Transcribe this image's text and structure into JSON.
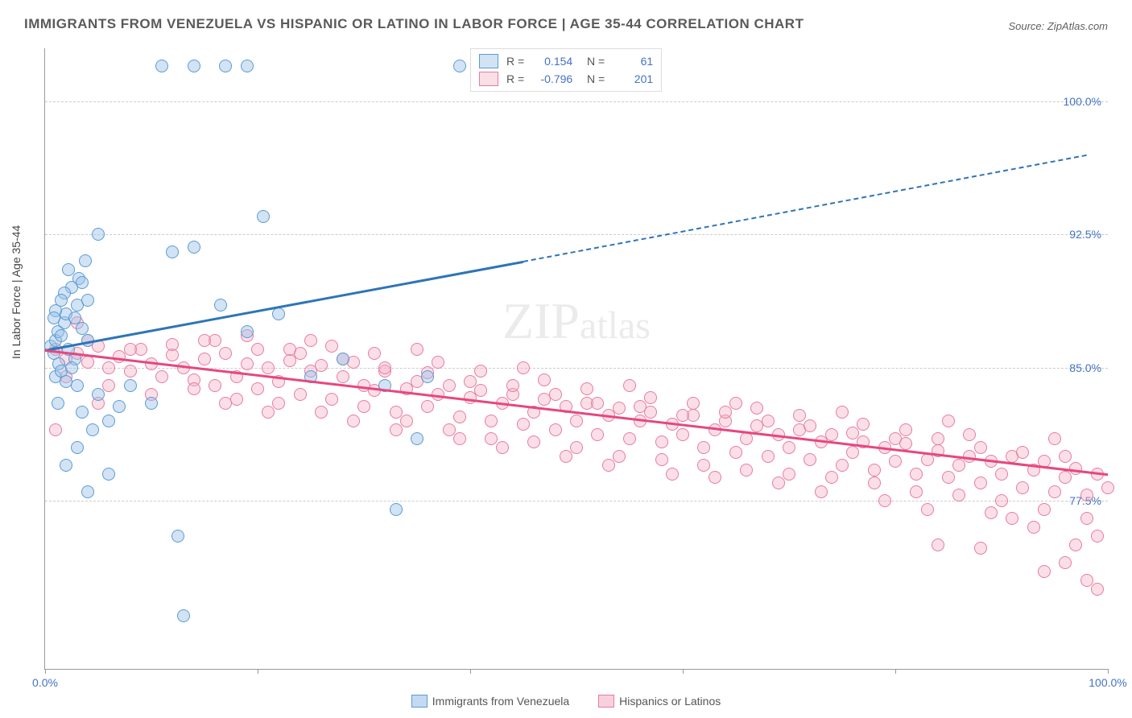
{
  "title": "IMMIGRANTS FROM VENEZUELA VS HISPANIC OR LATINO IN LABOR FORCE | AGE 35-44 CORRELATION CHART",
  "source": "Source: ZipAtlas.com",
  "y_axis_label": "In Labor Force | Age 35-44",
  "chart": {
    "type": "scatter",
    "xlim": [
      0,
      100
    ],
    "ylim": [
      68,
      103
    ],
    "y_ticks": [
      77.5,
      85.0,
      92.5,
      100.0
    ],
    "y_tick_labels": [
      "77.5%",
      "85.0%",
      "92.5%",
      "100.0%"
    ],
    "x_ticks": [
      0,
      20,
      40,
      60,
      80,
      100
    ],
    "x_tick_labels_shown": {
      "0": "0.0%",
      "100": "100.0%"
    },
    "background_color": "#ffffff",
    "grid_color": "#cccccc",
    "series": [
      {
        "name": "Immigrants from Venezuela",
        "color_fill": "rgba(156,194,230,0.45)",
        "color_stroke": "#5b9bd5",
        "trend_color": "#2e75b6",
        "r": 0.154,
        "n": 61,
        "trend": {
          "x1": 0,
          "y1": 86.0,
          "x2": 45,
          "y2": 91.0,
          "dash_x2": 98,
          "dash_y2": 97.0
        },
        "points": [
          [
            0.5,
            86.2
          ],
          [
            0.8,
            85.8
          ],
          [
            1.0,
            86.5
          ],
          [
            1.2,
            87.0
          ],
          [
            1.3,
            85.2
          ],
          [
            1.5,
            86.8
          ],
          [
            1.8,
            87.5
          ],
          [
            2.0,
            88.0
          ],
          [
            2.2,
            86.0
          ],
          [
            2.5,
            89.5
          ],
          [
            2.8,
            85.5
          ],
          [
            3.0,
            88.5
          ],
          [
            3.2,
            90.0
          ],
          [
            3.5,
            87.2
          ],
          [
            3.8,
            91.0
          ],
          [
            4.0,
            86.5
          ],
          [
            1.0,
            84.5
          ],
          [
            1.5,
            84.8
          ],
          [
            2.0,
            84.2
          ],
          [
            2.5,
            85.0
          ],
          [
            3.0,
            84.0
          ],
          [
            1.2,
            83.0
          ],
          [
            3.5,
            82.5
          ],
          [
            5.0,
            83.5
          ],
          [
            6.0,
            82.0
          ],
          [
            8.0,
            84.0
          ],
          [
            10.0,
            83.0
          ],
          [
            4.5,
            81.5
          ],
          [
            7.0,
            82.8
          ],
          [
            2.0,
            79.5
          ],
          [
            6.0,
            79.0
          ],
          [
            4.0,
            78.0
          ],
          [
            3.0,
            80.5
          ],
          [
            11.0,
            102.0
          ],
          [
            14.0,
            102.0
          ],
          [
            17.0,
            102.0
          ],
          [
            19.0,
            102.0
          ],
          [
            39.0,
            102.0
          ],
          [
            5.0,
            92.5
          ],
          [
            12.0,
            91.5
          ],
          [
            14.0,
            91.8
          ],
          [
            20.5,
            93.5
          ],
          [
            16.5,
            88.5
          ],
          [
            19.0,
            87.0
          ],
          [
            22.0,
            88.0
          ],
          [
            25.0,
            84.5
          ],
          [
            28.0,
            85.5
          ],
          [
            32.0,
            84.0
          ],
          [
            36.0,
            84.5
          ],
          [
            35.0,
            81.0
          ],
          [
            33.0,
            77.0
          ],
          [
            12.5,
            75.5
          ],
          [
            13.0,
            71.0
          ],
          [
            4.0,
            88.8
          ],
          [
            3.5,
            89.8
          ],
          [
            2.2,
            90.5
          ],
          [
            1.8,
            89.2
          ],
          [
            1.0,
            88.2
          ],
          [
            0.8,
            87.8
          ],
          [
            1.5,
            88.8
          ],
          [
            2.8,
            87.8
          ]
        ]
      },
      {
        "name": "Hispanics or Latinos",
        "color_fill": "rgba(244,176,196,0.4)",
        "color_stroke": "#e87ba0",
        "trend_color": "#e8467f",
        "r": -0.796,
        "n": 201,
        "trend": {
          "x1": 0,
          "y1": 86.0,
          "x2": 100,
          "y2": 79.0
        },
        "points": [
          [
            1,
            86.0
          ],
          [
            2,
            85.5
          ],
          [
            3,
            85.8
          ],
          [
            4,
            85.3
          ],
          [
            5,
            86.2
          ],
          [
            6,
            85.0
          ],
          [
            7,
            85.6
          ],
          [
            8,
            84.8
          ],
          [
            9,
            86.0
          ],
          [
            10,
            85.2
          ],
          [
            11,
            84.5
          ],
          [
            12,
            85.7
          ],
          [
            13,
            85.0
          ],
          [
            14,
            84.3
          ],
          [
            15,
            85.5
          ],
          [
            16,
            84.0
          ],
          [
            17,
            85.8
          ],
          [
            18,
            84.5
          ],
          [
            19,
            85.2
          ],
          [
            20,
            83.8
          ],
          [
            21,
            85.0
          ],
          [
            22,
            84.2
          ],
          [
            23,
            85.4
          ],
          [
            24,
            83.5
          ],
          [
            25,
            84.8
          ],
          [
            26,
            85.1
          ],
          [
            27,
            83.2
          ],
          [
            28,
            84.5
          ],
          [
            29,
            85.3
          ],
          [
            30,
            84.0
          ],
          [
            31,
            83.7
          ],
          [
            32,
            84.8
          ],
          [
            33,
            82.5
          ],
          [
            34,
            83.8
          ],
          [
            35,
            84.2
          ],
          [
            36,
            82.8
          ],
          [
            37,
            83.5
          ],
          [
            38,
            84.0
          ],
          [
            39,
            82.2
          ],
          [
            40,
            83.3
          ],
          [
            41,
            83.7
          ],
          [
            42,
            82.0
          ],
          [
            43,
            83.0
          ],
          [
            44,
            83.5
          ],
          [
            45,
            81.8
          ],
          [
            46,
            82.5
          ],
          [
            47,
            83.2
          ],
          [
            48,
            81.5
          ],
          [
            49,
            82.8
          ],
          [
            50,
            82.0
          ],
          [
            51,
            83.0
          ],
          [
            52,
            81.2
          ],
          [
            53,
            82.3
          ],
          [
            54,
            82.7
          ],
          [
            55,
            81.0
          ],
          [
            56,
            82.0
          ],
          [
            57,
            82.5
          ],
          [
            58,
            80.8
          ],
          [
            59,
            81.8
          ],
          [
            60,
            81.2
          ],
          [
            61,
            82.3
          ],
          [
            62,
            80.5
          ],
          [
            63,
            81.5
          ],
          [
            64,
            82.0
          ],
          [
            65,
            80.2
          ],
          [
            66,
            81.0
          ],
          [
            67,
            81.7
          ],
          [
            68,
            80.0
          ],
          [
            69,
            81.2
          ],
          [
            70,
            80.5
          ],
          [
            71,
            81.5
          ],
          [
            72,
            79.8
          ],
          [
            73,
            80.8
          ],
          [
            74,
            81.2
          ],
          [
            75,
            79.5
          ],
          [
            76,
            80.2
          ],
          [
            77,
            80.8
          ],
          [
            78,
            79.2
          ],
          [
            79,
            80.5
          ],
          [
            80,
            79.7
          ],
          [
            81,
            80.7
          ],
          [
            82,
            79.0
          ],
          [
            83,
            79.8
          ],
          [
            84,
            80.3
          ],
          [
            85,
            78.8
          ],
          [
            86,
            79.5
          ],
          [
            87,
            80.0
          ],
          [
            88,
            78.5
          ],
          [
            89,
            79.7
          ],
          [
            90,
            79.0
          ],
          [
            91,
            80.0
          ],
          [
            92,
            78.2
          ],
          [
            93,
            79.2
          ],
          [
            94,
            79.7
          ],
          [
            95,
            78.0
          ],
          [
            96,
            78.8
          ],
          [
            97,
            79.3
          ],
          [
            98,
            77.8
          ],
          [
            99,
            79.0
          ],
          [
            100,
            78.2
          ],
          [
            2,
            84.5
          ],
          [
            4,
            86.5
          ],
          [
            6,
            84.0
          ],
          [
            8,
            86.0
          ],
          [
            10,
            83.5
          ],
          [
            12,
            86.3
          ],
          [
            14,
            83.8
          ],
          [
            16,
            86.5
          ],
          [
            18,
            83.2
          ],
          [
            20,
            86.0
          ],
          [
            22,
            83.0
          ],
          [
            24,
            85.8
          ],
          [
            26,
            82.5
          ],
          [
            28,
            85.5
          ],
          [
            30,
            82.8
          ],
          [
            32,
            85.0
          ],
          [
            34,
            82.0
          ],
          [
            36,
            84.7
          ],
          [
            38,
            81.5
          ],
          [
            40,
            84.2
          ],
          [
            42,
            81.0
          ],
          [
            44,
            84.0
          ],
          [
            46,
            80.8
          ],
          [
            48,
            83.5
          ],
          [
            50,
            80.5
          ],
          [
            52,
            83.0
          ],
          [
            54,
            80.0
          ],
          [
            56,
            82.8
          ],
          [
            58,
            79.8
          ],
          [
            60,
            82.3
          ],
          [
            62,
            79.5
          ],
          [
            64,
            82.5
          ],
          [
            66,
            79.2
          ],
          [
            68,
            82.0
          ],
          [
            70,
            79.0
          ],
          [
            72,
            81.7
          ],
          [
            74,
            78.8
          ],
          [
            76,
            81.3
          ],
          [
            78,
            78.5
          ],
          [
            80,
            81.0
          ],
          [
            82,
            78.0
          ],
          [
            84,
            81.0
          ],
          [
            86,
            77.8
          ],
          [
            88,
            80.5
          ],
          [
            90,
            77.5
          ],
          [
            92,
            80.2
          ],
          [
            94,
            77.0
          ],
          [
            96,
            80.0
          ],
          [
            98,
            76.5
          ],
          [
            99,
            75.5
          ],
          [
            1,
            81.5
          ],
          [
            3,
            87.5
          ],
          [
            5,
            83.0
          ],
          [
            25,
            86.5
          ],
          [
            35,
            86.0
          ],
          [
            45,
            85.0
          ],
          [
            55,
            84.0
          ],
          [
            65,
            83.0
          ],
          [
            75,
            82.5
          ],
          [
            85,
            82.0
          ],
          [
            84,
            75.0
          ],
          [
            88,
            74.8
          ],
          [
            94,
            73.5
          ],
          [
            96,
            74.0
          ],
          [
            98,
            73.0
          ],
          [
            99,
            72.5
          ],
          [
            97,
            75.0
          ],
          [
            93,
            76.0
          ],
          [
            91,
            76.5
          ],
          [
            89,
            76.8
          ],
          [
            15,
            86.5
          ],
          [
            17,
            83.0
          ],
          [
            19,
            86.8
          ],
          [
            21,
            82.5
          ],
          [
            23,
            86.0
          ],
          [
            27,
            86.2
          ],
          [
            29,
            82.0
          ],
          [
            31,
            85.8
          ],
          [
            33,
            81.5
          ],
          [
            37,
            85.3
          ],
          [
            39,
            81.0
          ],
          [
            41,
            84.8
          ],
          [
            43,
            80.5
          ],
          [
            47,
            84.3
          ],
          [
            49,
            80.0
          ],
          [
            51,
            83.8
          ],
          [
            53,
            79.5
          ],
          [
            57,
            83.3
          ],
          [
            59,
            79.0
          ],
          [
            61,
            83.0
          ],
          [
            63,
            78.8
          ],
          [
            67,
            82.7
          ],
          [
            69,
            78.5
          ],
          [
            71,
            82.3
          ],
          [
            73,
            78.0
          ],
          [
            77,
            81.8
          ],
          [
            79,
            77.5
          ],
          [
            81,
            81.5
          ],
          [
            83,
            77.0
          ],
          [
            87,
            81.2
          ],
          [
            95,
            81.0
          ]
        ]
      }
    ]
  },
  "watermark": "ZIPatlas",
  "bottom_legend": [
    {
      "label": "Immigrants from Venezuela",
      "fill": "rgba(156,194,230,0.6)",
      "stroke": "#5b9bd5"
    },
    {
      "label": "Hispanics or Latinos",
      "fill": "rgba(244,176,196,0.6)",
      "stroke": "#e87ba0"
    }
  ]
}
